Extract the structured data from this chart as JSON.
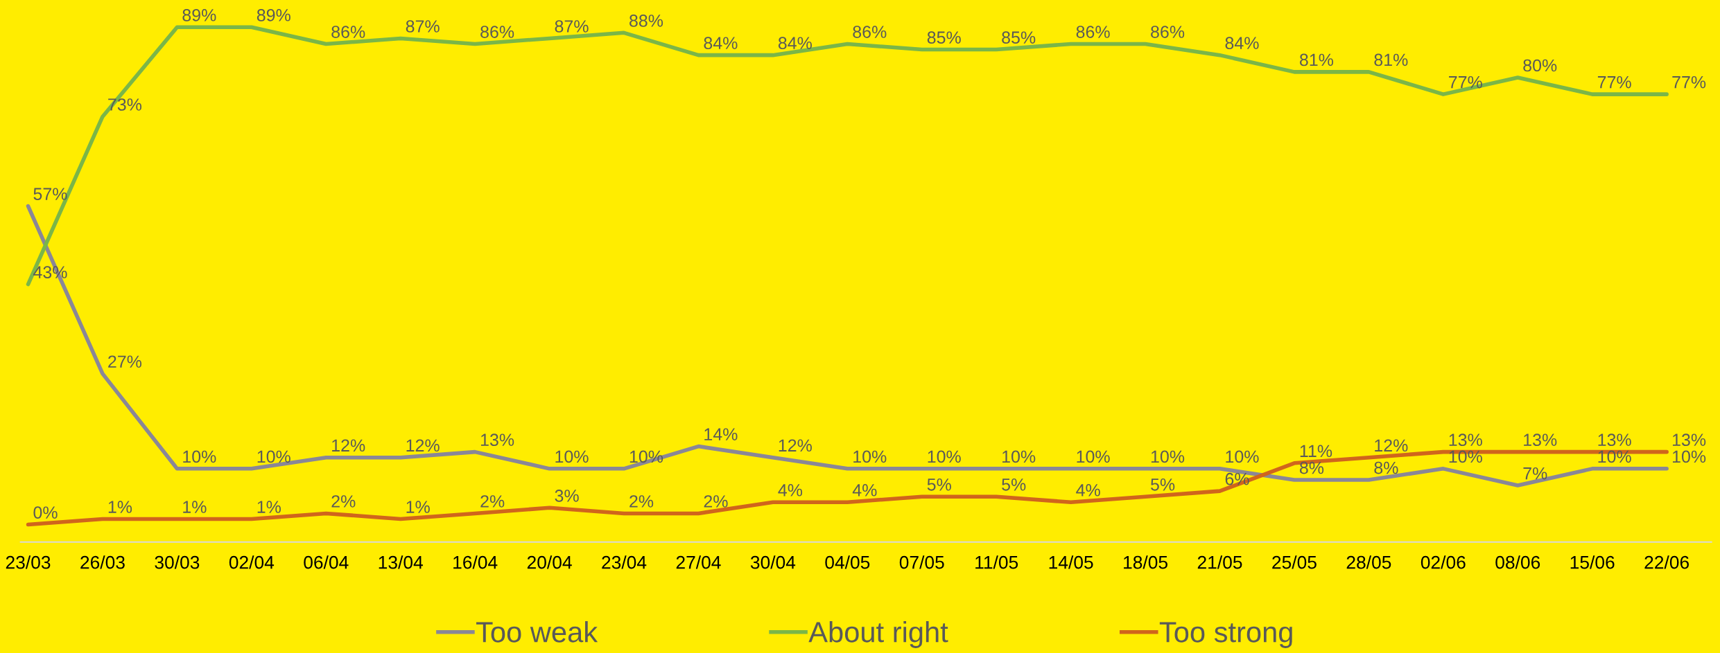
{
  "chart_data": {
    "type": "line",
    "categories": [
      "23/03",
      "26/03",
      "30/03",
      "02/04",
      "06/04",
      "13/04",
      "16/04",
      "20/04",
      "23/04",
      "27/04",
      "30/04",
      "04/05",
      "07/05",
      "11/05",
      "14/05",
      "18/05",
      "21/05",
      "25/05",
      "28/05",
      "02/06",
      "08/06",
      "15/06",
      "22/06"
    ],
    "series": [
      {
        "name": "Too weak",
        "color": "#8a8797",
        "values": [
          57,
          27,
          10,
          10,
          12,
          12,
          13,
          10,
          10,
          14,
          12,
          10,
          10,
          10,
          10,
          10,
          10,
          8,
          8,
          10,
          7,
          10,
          10
        ],
        "value_labels": [
          "57%",
          "27%",
          "10%",
          "10%",
          "12%",
          "12%",
          "13%",
          "10%",
          "10%",
          "14%",
          "12%",
          "10%",
          "10%",
          "10%",
          "10%",
          "10%",
          "10%",
          "8%",
          "8%",
          "10%",
          "7%",
          "10%",
          "10%"
        ]
      },
      {
        "name": "About right",
        "color": "#7ab648",
        "values": [
          43,
          73,
          89,
          89,
          86,
          87,
          86,
          87,
          88,
          84,
          84,
          86,
          85,
          85,
          86,
          86,
          84,
          81,
          81,
          77,
          80,
          77,
          77
        ],
        "value_labels": [
          "43%",
          "73%",
          "89%",
          "89%",
          "86%",
          "87%",
          "86%",
          "87%",
          "88%",
          "84%",
          "84%",
          "86%",
          "85%",
          "85%",
          "86%",
          "86%",
          "84%",
          "81%",
          "81%",
          "77%",
          "80%",
          "77%",
          "77%"
        ]
      },
      {
        "name": "Too strong",
        "color": "#d0651c",
        "values": [
          0,
          1,
          1,
          1,
          2,
          1,
          2,
          3,
          2,
          2,
          4,
          4,
          5,
          5,
          4,
          5,
          6,
          11,
          12,
          13,
          13,
          13,
          13
        ],
        "value_labels": [
          "0%",
          "1%",
          "1%",
          "1%",
          "2%",
          "1%",
          "2%",
          "3%",
          "2%",
          "2%",
          "4%",
          "4%",
          "5%",
          "5%",
          "4%",
          "5%",
          "6%",
          "11%",
          "12%",
          "13%",
          "13%",
          "13%",
          "13%"
        ]
      }
    ],
    "legend": "bottom",
    "marker": "none",
    "line_style": "solid"
  }
}
